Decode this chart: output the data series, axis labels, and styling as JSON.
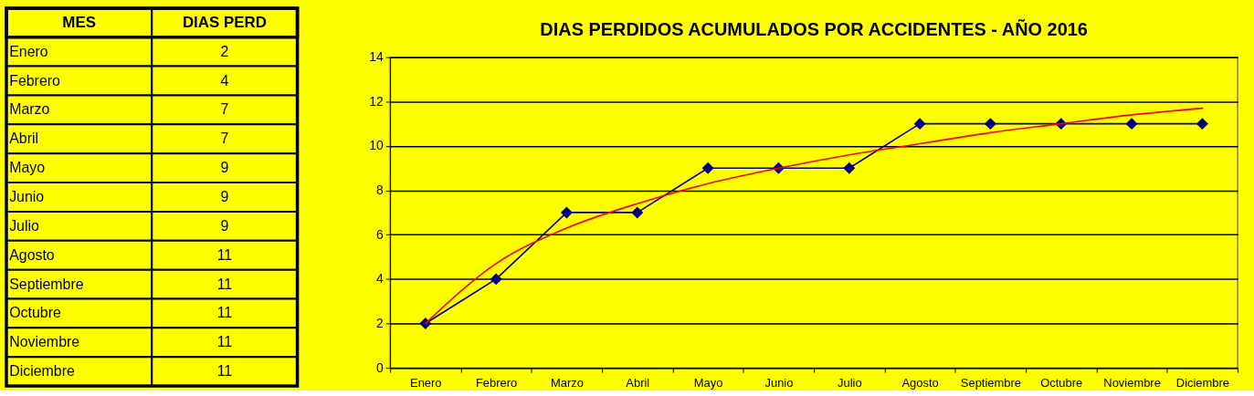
{
  "chart_data": [
    {
      "type": "other",
      "annotations": [
        "MES",
        "DIAS PERD"
      ],
      "categories": [
        "Enero",
        "Febrero",
        "Marzo",
        "Abril",
        "Mayo",
        "Junio",
        "Julio",
        "Agosto",
        "Septiembre",
        "Octubre",
        "Noviembre",
        "Diciembre"
      ],
      "values": [
        2,
        4,
        7,
        7,
        9,
        9,
        9,
        11,
        11,
        11,
        11,
        11
      ],
      "data_labels": true
    },
    {
      "type": "line",
      "title": "DIAS PERDIDOS ACUMULADOS POR ACCIDENTES - AÑO 2016",
      "categories": [
        "Enero",
        "Febrero",
        "Marzo",
        "Abril",
        "Mayo",
        "Junio",
        "Julio",
        "Agosto",
        "Septiembre",
        "Octubre",
        "Noviembre",
        "Diciembre"
      ],
      "series": [
        {
          "color": "#000080",
          "values": [
            2,
            4,
            7,
            7,
            9,
            9,
            9,
            11,
            11,
            11,
            11,
            11
          ]
        },
        {
          "color": "#ff0000",
          "marker": "none",
          "values": [
            2.0,
            4.7,
            6.3,
            7.4,
            8.3,
            9.0,
            9.6,
            10.1,
            10.6,
            11.0,
            11.4,
            11.7
          ]
        }
      ],
      "ylim": [
        0,
        14
      ],
      "yticks": [
        0,
        2,
        4,
        6,
        8,
        10,
        12,
        14
      ],
      "grid": "y",
      "marker": "diamond",
      "line_style": "solid"
    }
  ]
}
